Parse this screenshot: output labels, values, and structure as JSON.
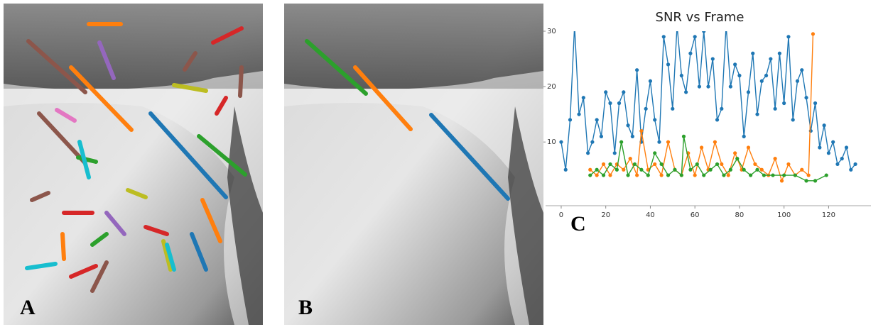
{
  "panels": [
    {
      "label": "A"
    },
    {
      "label": "B"
    },
    {
      "label": "C"
    }
  ],
  "chart_data": {
    "type": "line",
    "title": "SNR vs Frame",
    "xlim": [
      -7,
      139
    ],
    "ylim": [
      -1.5,
      30
    ],
    "xticks": [
      0,
      20,
      40,
      60,
      80,
      100,
      120
    ],
    "yticks": [
      10,
      20,
      30
    ],
    "series": [
      {
        "color": "#1f77b4",
        "x": [
          0,
          2,
          4,
          6,
          8,
          10,
          12,
          14,
          16,
          18,
          20,
          22,
          24,
          26,
          28,
          30,
          32,
          34,
          36,
          38,
          40,
          42,
          44,
          46,
          48,
          50,
          52,
          54,
          56,
          58,
          60,
          62,
          64,
          66,
          68,
          70,
          72,
          74,
          76,
          78,
          80,
          82,
          84,
          86,
          88,
          90,
          92,
          94,
          96,
          98,
          100,
          102,
          104,
          106,
          108,
          110,
          112,
          114,
          116,
          118,
          120,
          122,
          124,
          126,
          128,
          130,
          132
        ],
        "values": [
          10,
          5,
          14,
          31,
          15,
          18,
          8,
          10,
          14,
          11,
          19,
          17,
          8,
          17,
          19,
          13,
          11,
          23,
          10,
          16,
          21,
          14,
          10,
          29,
          24,
          16,
          31,
          22,
          19,
          26,
          29,
          20,
          30,
          20,
          25,
          14,
          16,
          31,
          20,
          24,
          22,
          11,
          19,
          26,
          15,
          21,
          22,
          25,
          16,
          26,
          17,
          29,
          14,
          21,
          23,
          18,
          12,
          17,
          9,
          13,
          8,
          10,
          6,
          7,
          9,
          5,
          6
        ]
      },
      {
        "color": "#ff7f0e",
        "x": [
          13,
          16,
          19,
          22,
          25,
          28,
          31,
          34,
          36,
          39,
          42,
          45,
          48,
          51,
          54,
          57,
          60,
          63,
          66,
          69,
          72,
          75,
          78,
          81,
          84,
          87,
          90,
          93,
          96,
          99,
          102,
          105,
          108,
          111,
          113
        ],
        "values": [
          5,
          4,
          6,
          4,
          6,
          5,
          7,
          4,
          12,
          5,
          6,
          4,
          10,
          5,
          4,
          8,
          4,
          9,
          5,
          10,
          6,
          4,
          8,
          5,
          9,
          6,
          5,
          4,
          7,
          3,
          6,
          4,
          5,
          4,
          29.5
        ]
      },
      {
        "color": "#2ca02c",
        "x": [
          13,
          16,
          19,
          22,
          25,
          27,
          30,
          33,
          36,
          39,
          42,
          45,
          48,
          51,
          54,
          55,
          58,
          61,
          64,
          67,
          70,
          73,
          76,
          79,
          82,
          85,
          88,
          91,
          95,
          100,
          105,
          110,
          114,
          119
        ],
        "values": [
          4,
          5,
          4,
          6,
          5,
          10,
          4,
          6,
          5,
          4,
          8,
          6,
          4,
          5,
          4,
          11,
          5,
          6,
          4,
          5,
          6,
          4,
          5,
          7,
          5,
          4,
          5,
          4,
          4,
          4,
          4,
          3,
          3,
          4
        ]
      }
    ]
  }
}
